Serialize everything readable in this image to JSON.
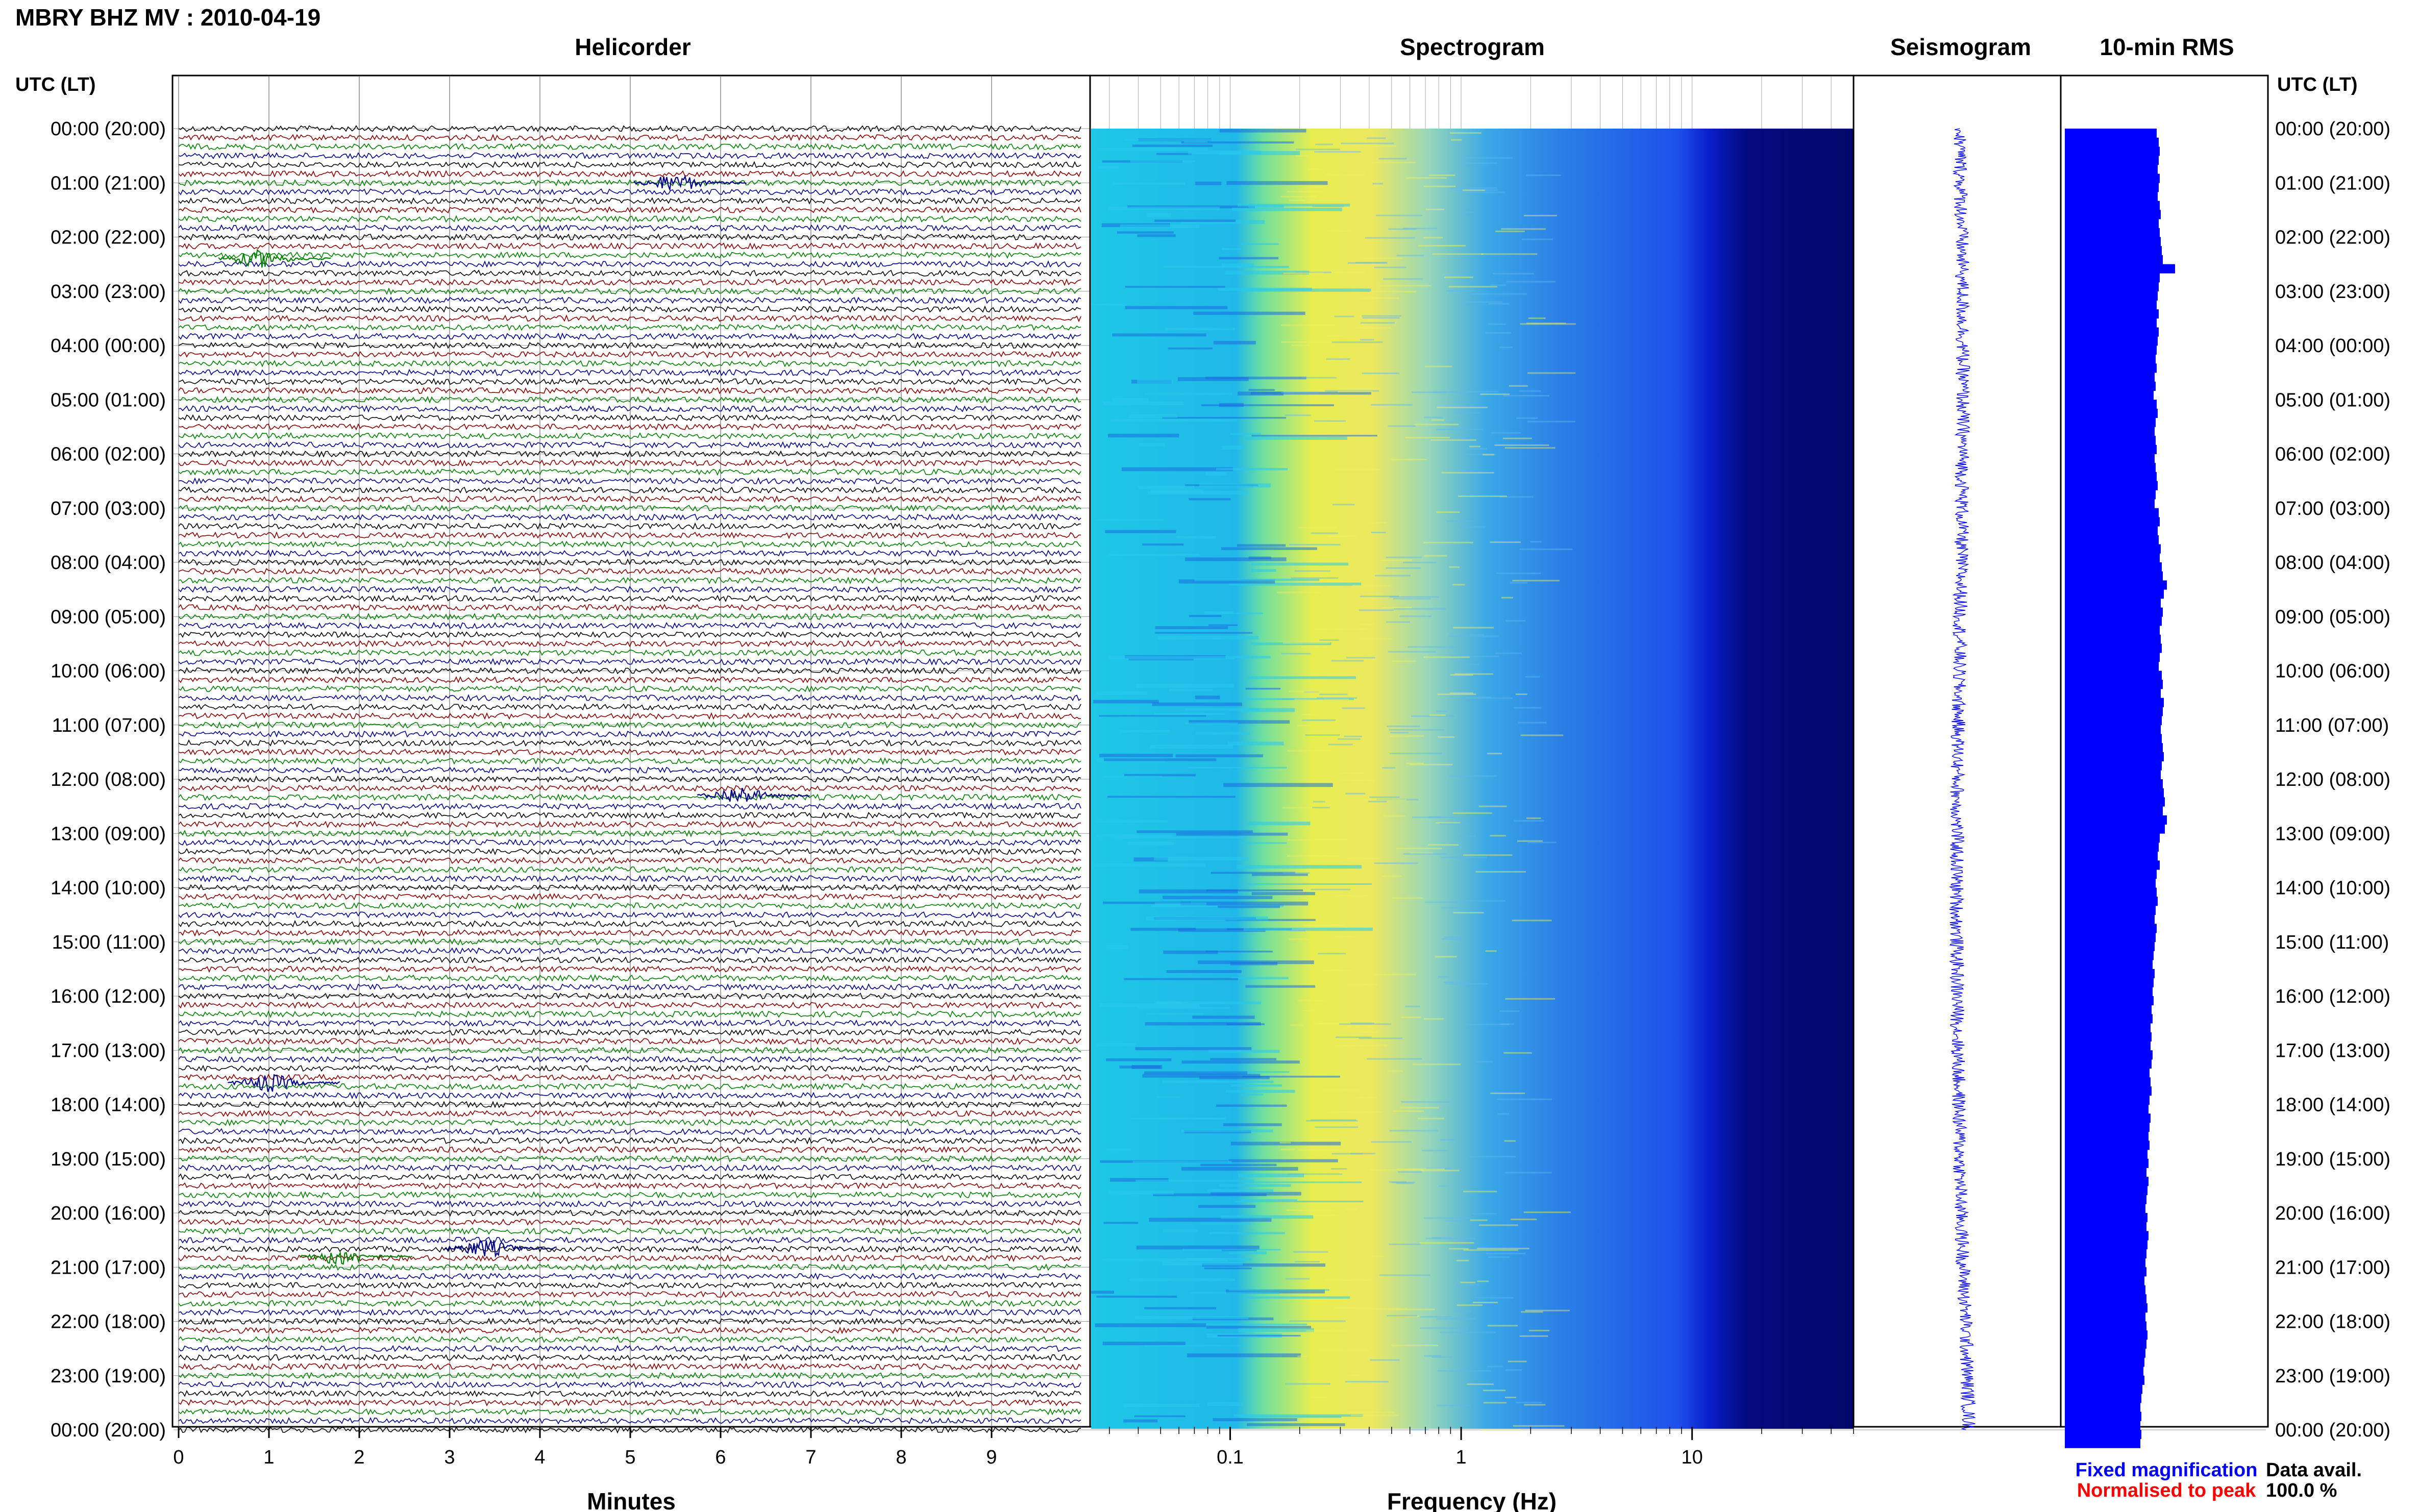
{
  "header": {
    "title": "MBRY BHZ MV : 2010-04-19",
    "utc_label_left": "UTC (LT)",
    "utc_label_right": "UTC (LT)"
  },
  "panels": {
    "helicorder_title": "Helicorder",
    "spectrogram_title": "Spectrogram",
    "seismogram_title": "Seismogram",
    "rms_title": "10-min RMS",
    "helicorder_xlabel": "Minutes",
    "spectrogram_xlabel": "Frequency (Hz)"
  },
  "legend": {
    "fixed_magnification": "Fixed magnification",
    "normalised_to_peak": "Normalised to peak",
    "data_avail_label": "Data avail.",
    "data_avail_value": "100.0 %"
  },
  "colors": {
    "fixed_magnification": "#0000ff",
    "normalised_to_peak": "#ff0000",
    "trace_colors": [
      "#000000",
      "#8b0000",
      "#008000",
      "#00008b"
    ],
    "rms_bar": "#0000ff",
    "seismogram": "#0000ff"
  },
  "chart_data": [
    {
      "type": "line",
      "panel": "helicorder",
      "title": "Helicorder",
      "xlabel": "Minutes",
      "x_ticks": [
        "0",
        "1",
        "2",
        "3",
        "4",
        "5",
        "6",
        "7",
        "8",
        "9"
      ],
      "xlim": [
        0,
        10
      ],
      "time_labels": [
        "00:00 (20:00)",
        "01:00 (21:00)",
        "02:00 (22:00)",
        "03:00 (23:00)",
        "04:00 (00:00)",
        "05:00 (01:00)",
        "06:00 (02:00)",
        "07:00 (03:00)",
        "08:00 (04:00)",
        "09:00 (05:00)",
        "10:00 (06:00)",
        "11:00 (07:00)",
        "12:00 (08:00)",
        "13:00 (09:00)",
        "14:00 (10:00)",
        "15:00 (11:00)",
        "16:00 (12:00)",
        "17:00 (13:00)",
        "18:00 (14:00)",
        "19:00 (15:00)",
        "20:00 (16:00)",
        "21:00 (17:00)",
        "22:00 (18:00)",
        "23:00 (19:00)",
        "00:00 (20:00)"
      ],
      "traces_per_hour": 6,
      "events": [
        {
          "hour": 2.4,
          "minute": 0.9,
          "color": "green"
        },
        {
          "hour": 1.0,
          "minute": 5.5,
          "color": "blue"
        },
        {
          "hour": 12.3,
          "minute": 6.2,
          "color": "blue"
        },
        {
          "hour": 20.8,
          "minute": 1.8,
          "color": "green"
        },
        {
          "hour": 20.65,
          "minute": 3.4,
          "color": "blue"
        },
        {
          "hour": 17.6,
          "minute": 1.0,
          "color": "blue"
        }
      ]
    },
    {
      "type": "heatmap",
      "panel": "spectrogram",
      "title": "Spectrogram",
      "xlabel": "Frequency (Hz)",
      "x_scale": "log",
      "xlim": [
        0.025,
        50
      ],
      "x_tick_labels": [
        "0.1",
        "1",
        "10"
      ],
      "x_tick_values": [
        0.1,
        1,
        10
      ],
      "colormap_note": "cyan low, yellow peak near 0.2-0.5 Hz, deep blue above ~10 Hz"
    },
    {
      "type": "line",
      "panel": "seismogram",
      "title": "Seismogram",
      "hours": [
        0,
        24
      ]
    },
    {
      "type": "bar",
      "panel": "rms",
      "title": "10-min RMS",
      "orientation": "horizontal",
      "bins_per_hour": 6,
      "xlim": [
        0,
        1
      ],
      "relative_values": [
        0.9,
        0.92,
        0.93,
        0.92,
        0.91,
        0.93,
        0.92,
        0.91,
        0.93,
        0.94,
        0.92,
        0.93,
        0.94,
        0.95,
        0.96,
        1.08,
        0.93,
        0.92,
        0.91,
        0.9,
        0.92,
        0.9,
        0.92,
        0.91,
        0.9,
        0.89,
        0.9,
        0.88,
        0.89,
        0.87,
        0.9,
        0.91,
        0.89,
        0.88,
        0.89,
        0.9,
        0.88,
        0.89,
        0.9,
        0.91,
        0.89,
        0.88,
        0.92,
        0.93,
        0.91,
        0.92,
        0.94,
        0.93,
        0.95,
        0.96,
        1.0,
        0.97,
        0.94,
        0.96,
        0.95,
        0.93,
        0.94,
        0.95,
        0.93,
        0.92,
        0.95,
        0.96,
        0.94,
        0.97,
        0.96,
        0.95,
        0.94,
        0.95,
        0.96,
        0.97,
        0.95,
        0.94,
        0.96,
        0.97,
        0.98,
        0.96,
        1.0,
        0.98,
        0.93,
        0.92,
        0.91,
        0.93,
        0.9,
        0.89,
        0.9,
        0.91,
        0.89,
        0.88,
        0.9,
        0.89,
        0.88,
        0.87,
        0.86,
        0.88,
        0.87,
        0.86,
        0.87,
        0.85,
        0.86,
        0.84,
        0.85,
        0.84,
        0.86,
        0.85,
        0.83,
        0.84,
        0.85,
        0.83,
        0.82,
        0.84,
        0.83,
        0.82,
        0.83,
        0.81,
        0.82,
        0.8,
        0.82,
        0.81,
        0.8,
        0.79,
        0.81,
        0.8,
        0.82,
        0.81,
        0.8,
        0.79,
        0.8,
        0.78,
        0.79,
        0.8,
        0.81,
        0.79,
        0.8,
        0.81,
        0.8,
        0.79,
        0.78,
        0.77,
        0.78,
        0.76,
        0.75,
        0.74,
        0.75,
        0.74,
        0.75,
        0.74
      ]
    }
  ]
}
